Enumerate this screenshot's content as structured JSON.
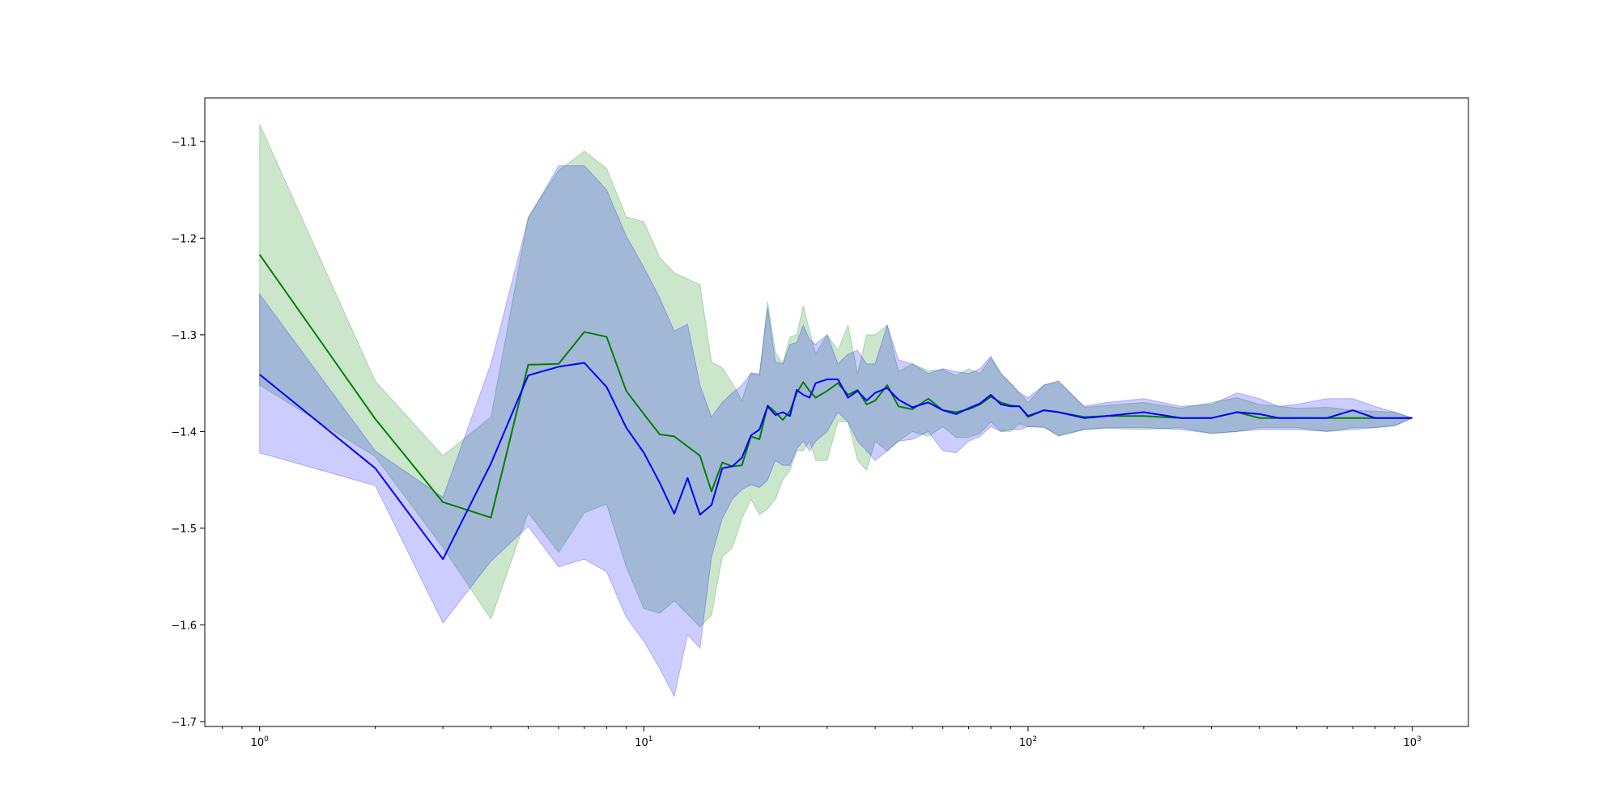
{
  "chart_data": {
    "type": "line",
    "title": "",
    "xlabel": "",
    "ylabel": "",
    "xscale": "log",
    "xlim": [
      0.72,
      1400
    ],
    "ylim": [
      -1.705,
      -1.055
    ],
    "xticks": [
      {
        "base": "10",
        "exp": "0",
        "value": 1
      },
      {
        "base": "10",
        "exp": "1",
        "value": 10
      },
      {
        "base": "10",
        "exp": "2",
        "value": 100
      },
      {
        "base": "10",
        "exp": "3",
        "value": 1000
      }
    ],
    "yticks": [
      {
        "label": "−1.1",
        "value": -1.1
      },
      {
        "label": "−1.2",
        "value": -1.2
      },
      {
        "label": "−1.3",
        "value": -1.3
      },
      {
        "label": "−1.4",
        "value": -1.4
      },
      {
        "label": "−1.5",
        "value": -1.5
      },
      {
        "label": "−1.6",
        "value": -1.6
      },
      {
        "label": "−1.7",
        "value": -1.7
      }
    ],
    "grid": false,
    "legend": "none",
    "series": [
      {
        "color": "#008000",
        "band_color": "#008000",
        "band_opacity": 0.2,
        "x": [
          1,
          2,
          3,
          4,
          5,
          6,
          7,
          8,
          9,
          10,
          11,
          12,
          14,
          15,
          16,
          17,
          18,
          19,
          20,
          21,
          22,
          23,
          24,
          25,
          26,
          27,
          28,
          30,
          32,
          34,
          36,
          38,
          40,
          43,
          46,
          50,
          55,
          60,
          65,
          70,
          75,
          80,
          85,
          90,
          95,
          100,
          110,
          120,
          140,
          160,
          200,
          250,
          300,
          350,
          400,
          450,
          500,
          600,
          700,
          800,
          900,
          1000
        ],
        "mean": [
          -1.217,
          -1.387,
          -1.473,
          -1.489,
          -1.331,
          -1.33,
          -1.297,
          -1.302,
          -1.358,
          -1.382,
          -1.403,
          -1.405,
          -1.425,
          -1.462,
          -1.432,
          -1.436,
          -1.435,
          -1.405,
          -1.408,
          -1.373,
          -1.38,
          -1.388,
          -1.379,
          -1.36,
          -1.349,
          -1.358,
          -1.365,
          -1.358,
          -1.35,
          -1.362,
          -1.357,
          -1.372,
          -1.368,
          -1.352,
          -1.374,
          -1.377,
          -1.366,
          -1.378,
          -1.38,
          -1.377,
          -1.372,
          -1.364,
          -1.37,
          -1.373,
          -1.374,
          -1.385,
          -1.378,
          -1.38,
          -1.385,
          -1.384,
          -1.384,
          -1.386,
          -1.386,
          -1.38,
          -1.386,
          -1.386,
          -1.386,
          -1.386,
          -1.386,
          -1.386,
          -1.386,
          -1.386
        ],
        "upper": [
          -1.082,
          -1.348,
          -1.425,
          -1.385,
          -1.178,
          -1.13,
          -1.11,
          -1.128,
          -1.178,
          -1.183,
          -1.22,
          -1.236,
          -1.248,
          -1.328,
          -1.334,
          -1.35,
          -1.368,
          -1.339,
          -1.342,
          -1.266,
          -1.318,
          -1.33,
          -1.302,
          -1.3,
          -1.27,
          -1.296,
          -1.32,
          -1.3,
          -1.316,
          -1.29,
          -1.34,
          -1.3,
          -1.3,
          -1.29,
          -1.338,
          -1.33,
          -1.337,
          -1.336,
          -1.342,
          -1.335,
          -1.34,
          -1.324,
          -1.34,
          -1.35,
          -1.36,
          -1.37,
          -1.352,
          -1.348,
          -1.375,
          -1.373,
          -1.37,
          -1.376,
          -1.37,
          -1.365,
          -1.372,
          -1.374,
          -1.376,
          -1.375,
          -1.378,
          -1.379,
          -1.38,
          -1.386
        ],
        "lower": [
          -1.352,
          -1.426,
          -1.52,
          -1.594,
          -1.484,
          -1.525,
          -1.484,
          -1.475,
          -1.54,
          -1.583,
          -1.588,
          -1.575,
          -1.602,
          -1.59,
          -1.53,
          -1.52,
          -1.49,
          -1.47,
          -1.486,
          -1.48,
          -1.47,
          -1.45,
          -1.44,
          -1.42,
          -1.42,
          -1.41,
          -1.43,
          -1.43,
          -1.39,
          -1.39,
          -1.43,
          -1.44,
          -1.41,
          -1.42,
          -1.41,
          -1.4,
          -1.405,
          -1.395,
          -1.406,
          -1.406,
          -1.402,
          -1.39,
          -1.4,
          -1.4,
          -1.392,
          -1.395,
          -1.395,
          -1.405,
          -1.398,
          -1.397,
          -1.398,
          -1.396,
          -1.402,
          -1.4,
          -1.396,
          -1.396,
          -1.396,
          -1.4,
          -1.396,
          -1.396,
          -1.394,
          -1.386
        ]
      },
      {
        "color": "#0000ff",
        "band_color": "#0000ff",
        "band_opacity": 0.2,
        "x": [
          1,
          2,
          3,
          4,
          5,
          6,
          7,
          8,
          9,
          10,
          11,
          12,
          13,
          14,
          15,
          16,
          17,
          18,
          19,
          20,
          21,
          22,
          23,
          24,
          25,
          26,
          27,
          28,
          30,
          32,
          34,
          36,
          38,
          40,
          43,
          46,
          50,
          55,
          60,
          65,
          70,
          75,
          80,
          85,
          90,
          95,
          100,
          110,
          120,
          140,
          160,
          200,
          250,
          300,
          350,
          400,
          450,
          500,
          600,
          700,
          800,
          900,
          1000
        ],
        "mean": [
          -1.341,
          -1.438,
          -1.532,
          -1.433,
          -1.342,
          -1.333,
          -1.329,
          -1.354,
          -1.396,
          -1.422,
          -1.453,
          -1.485,
          -1.448,
          -1.486,
          -1.476,
          -1.438,
          -1.436,
          -1.427,
          -1.404,
          -1.398,
          -1.374,
          -1.383,
          -1.38,
          -1.384,
          -1.357,
          -1.362,
          -1.365,
          -1.35,
          -1.346,
          -1.346,
          -1.365,
          -1.358,
          -1.368,
          -1.36,
          -1.355,
          -1.367,
          -1.375,
          -1.37,
          -1.378,
          -1.382,
          -1.376,
          -1.371,
          -1.362,
          -1.372,
          -1.374,
          -1.374,
          -1.384,
          -1.378,
          -1.38,
          -1.386,
          -1.384,
          -1.38,
          -1.386,
          -1.386,
          -1.38,
          -1.382,
          -1.386,
          -1.386,
          -1.386,
          -1.378,
          -1.386,
          -1.386,
          -1.386
        ],
        "upper": [
          -1.258,
          -1.42,
          -1.468,
          -1.33,
          -1.18,
          -1.125,
          -1.125,
          -1.15,
          -1.198,
          -1.23,
          -1.262,
          -1.296,
          -1.289,
          -1.352,
          -1.385,
          -1.37,
          -1.36,
          -1.352,
          -1.34,
          -1.34,
          -1.272,
          -1.328,
          -1.33,
          -1.31,
          -1.308,
          -1.29,
          -1.305,
          -1.31,
          -1.3,
          -1.33,
          -1.32,
          -1.316,
          -1.33,
          -1.33,
          -1.29,
          -1.326,
          -1.33,
          -1.34,
          -1.335,
          -1.338,
          -1.34,
          -1.335,
          -1.322,
          -1.34,
          -1.35,
          -1.36,
          -1.365,
          -1.352,
          -1.348,
          -1.374,
          -1.37,
          -1.366,
          -1.374,
          -1.372,
          -1.36,
          -1.366,
          -1.374,
          -1.372,
          -1.366,
          -1.366,
          -1.374,
          -1.38,
          -1.386
        ],
        "lower": [
          -1.422,
          -1.456,
          -1.598,
          -1.534,
          -1.498,
          -1.54,
          -1.532,
          -1.545,
          -1.592,
          -1.617,
          -1.645,
          -1.674,
          -1.61,
          -1.624,
          -1.53,
          -1.49,
          -1.47,
          -1.46,
          -1.455,
          -1.458,
          -1.45,
          -1.43,
          -1.435,
          -1.435,
          -1.418,
          -1.41,
          -1.42,
          -1.41,
          -1.4,
          -1.38,
          -1.39,
          -1.41,
          -1.42,
          -1.43,
          -1.42,
          -1.41,
          -1.408,
          -1.4,
          -1.42,
          -1.422,
          -1.41,
          -1.405,
          -1.395,
          -1.4,
          -1.398,
          -1.398,
          -1.395,
          -1.396,
          -1.404,
          -1.398,
          -1.396,
          -1.396,
          -1.398,
          -1.402,
          -1.4,
          -1.398,
          -1.398,
          -1.398,
          -1.4,
          -1.398,
          -1.396,
          -1.394,
          -1.386
        ]
      }
    ]
  }
}
